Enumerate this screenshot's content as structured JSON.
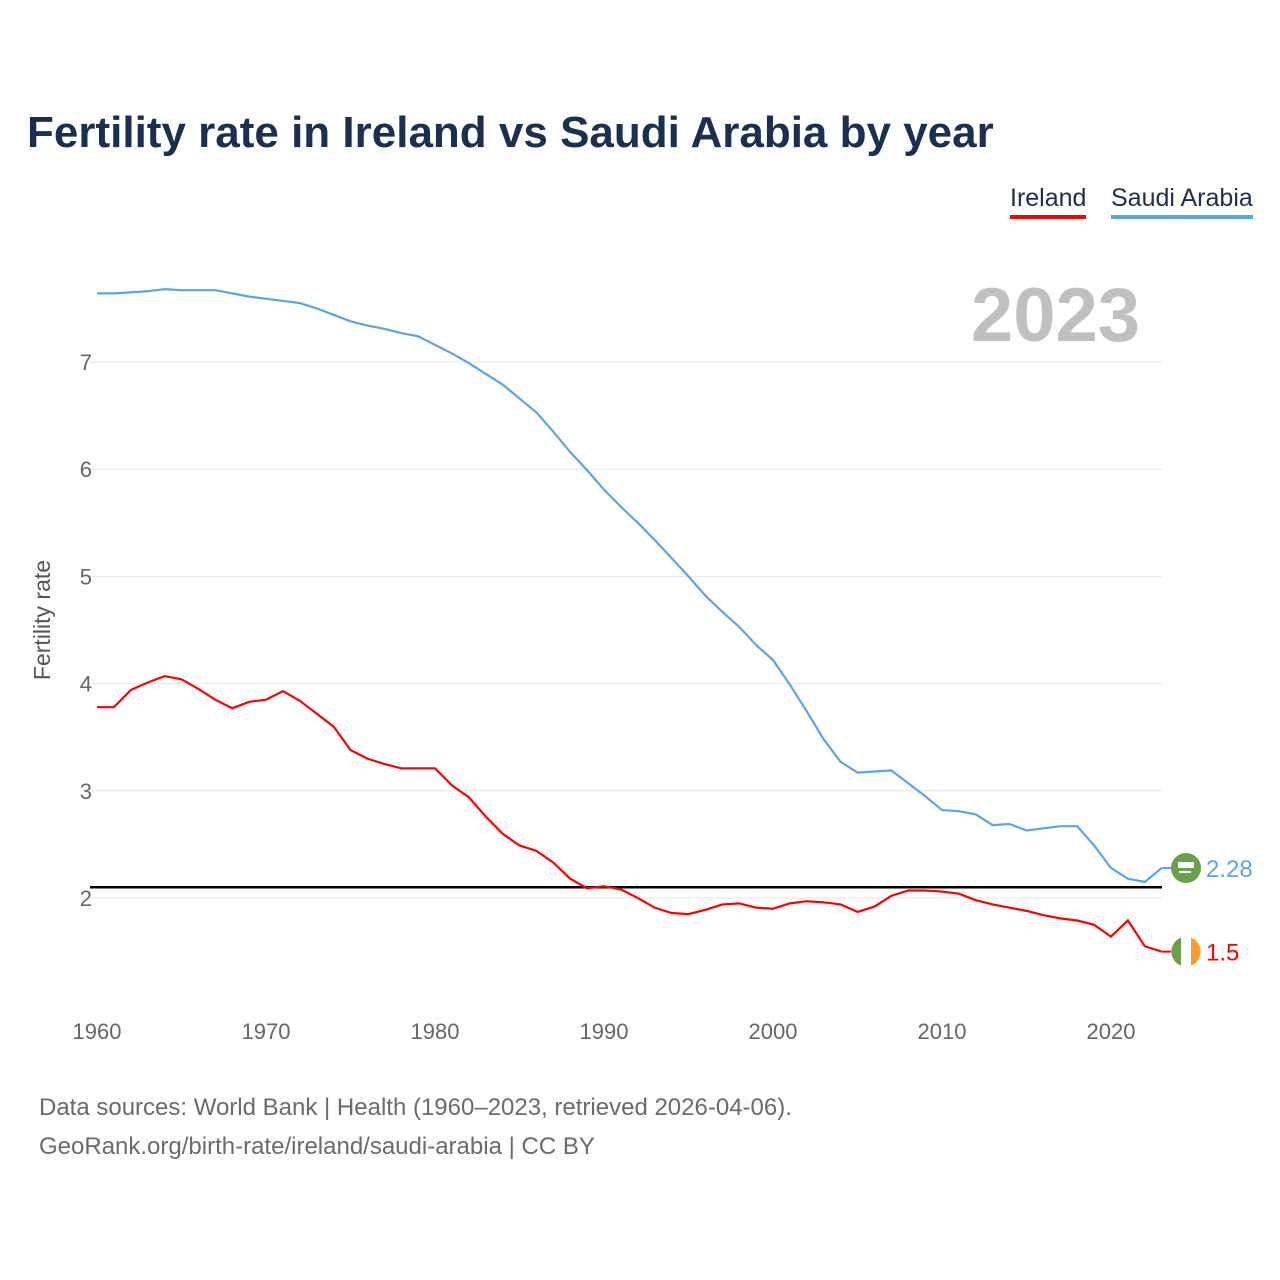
{
  "chart_data": {
    "type": "line",
    "title": "Fertility rate in Ireland vs Saudi Arabia by year",
    "ylabel": "Fertility rate",
    "xlabel": "",
    "year_label": "2023",
    "xlim": [
      1960,
      2023
    ],
    "ylim": [
      1.1,
      7.9
    ],
    "x_ticks": [
      "1960",
      "1970",
      "1980",
      "1990",
      "2000",
      "2010",
      "2020"
    ],
    "y_ticks": [
      "2",
      "3",
      "4",
      "5",
      "6",
      "7"
    ],
    "reference_line": 2.1,
    "grid": true,
    "legend_position": "top-right",
    "x": [
      1960,
      1961,
      1962,
      1963,
      1964,
      1965,
      1966,
      1967,
      1968,
      1969,
      1970,
      1971,
      1972,
      1973,
      1974,
      1975,
      1976,
      1977,
      1978,
      1979,
      1980,
      1981,
      1982,
      1983,
      1984,
      1985,
      1986,
      1987,
      1988,
      1989,
      1990,
      1991,
      1992,
      1993,
      1994,
      1995,
      1996,
      1997,
      1998,
      1999,
      2000,
      2001,
      2002,
      2003,
      2004,
      2005,
      2006,
      2007,
      2008,
      2009,
      2010,
      2011,
      2012,
      2013,
      2014,
      2015,
      2016,
      2017,
      2018,
      2019,
      2020,
      2021,
      2022,
      2023
    ],
    "series": [
      {
        "name": "Ireland",
        "color": "#ff0000",
        "end_label": "1.5",
        "values": [
          3.78,
          3.78,
          3.94,
          4.01,
          4.07,
          4.04,
          3.95,
          3.85,
          3.77,
          3.83,
          3.85,
          3.93,
          3.84,
          3.72,
          3.6,
          3.38,
          3.3,
          3.25,
          3.21,
          3.21,
          3.21,
          3.05,
          2.94,
          2.76,
          2.6,
          2.49,
          2.44,
          2.33,
          2.18,
          2.09,
          2.11,
          2.08,
          2.0,
          1.91,
          1.86,
          1.85,
          1.89,
          1.94,
          1.95,
          1.91,
          1.9,
          1.95,
          1.97,
          1.96,
          1.94,
          1.87,
          1.92,
          2.02,
          2.07,
          2.07,
          2.06,
          2.04,
          1.98,
          1.94,
          1.91,
          1.88,
          1.84,
          1.81,
          1.79,
          1.75,
          1.64,
          1.79,
          1.55,
          1.5
        ]
      },
      {
        "name": "Saudi Arabia",
        "color": "#5aa5ea",
        "end_label": "2.28",
        "values": [
          7.64,
          7.64,
          7.65,
          7.66,
          7.68,
          7.67,
          7.67,
          7.67,
          7.64,
          7.61,
          7.59,
          7.57,
          7.55,
          7.5,
          7.44,
          7.38,
          7.34,
          7.31,
          7.27,
          7.24,
          7.16,
          7.08,
          6.99,
          6.89,
          6.79,
          6.66,
          6.53,
          6.35,
          6.16,
          5.99,
          5.81,
          5.65,
          5.5,
          5.34,
          5.17,
          5.0,
          4.82,
          4.67,
          4.53,
          4.36,
          4.22,
          3.99,
          3.74,
          3.48,
          3.27,
          3.17,
          3.18,
          3.19,
          3.07,
          2.95,
          2.82,
          2.81,
          2.78,
          2.68,
          2.69,
          2.63,
          2.65,
          2.67,
          2.67,
          2.49,
          2.28,
          2.18,
          2.15,
          2.28
        ]
      }
    ]
  },
  "footer": {
    "line1": "Data sources: World Bank | Health (1960–2023, retrieved 2026-04-06).",
    "line2": "GeoRank.org/birth-rate/ireland/saudi-arabia | CC BY"
  }
}
